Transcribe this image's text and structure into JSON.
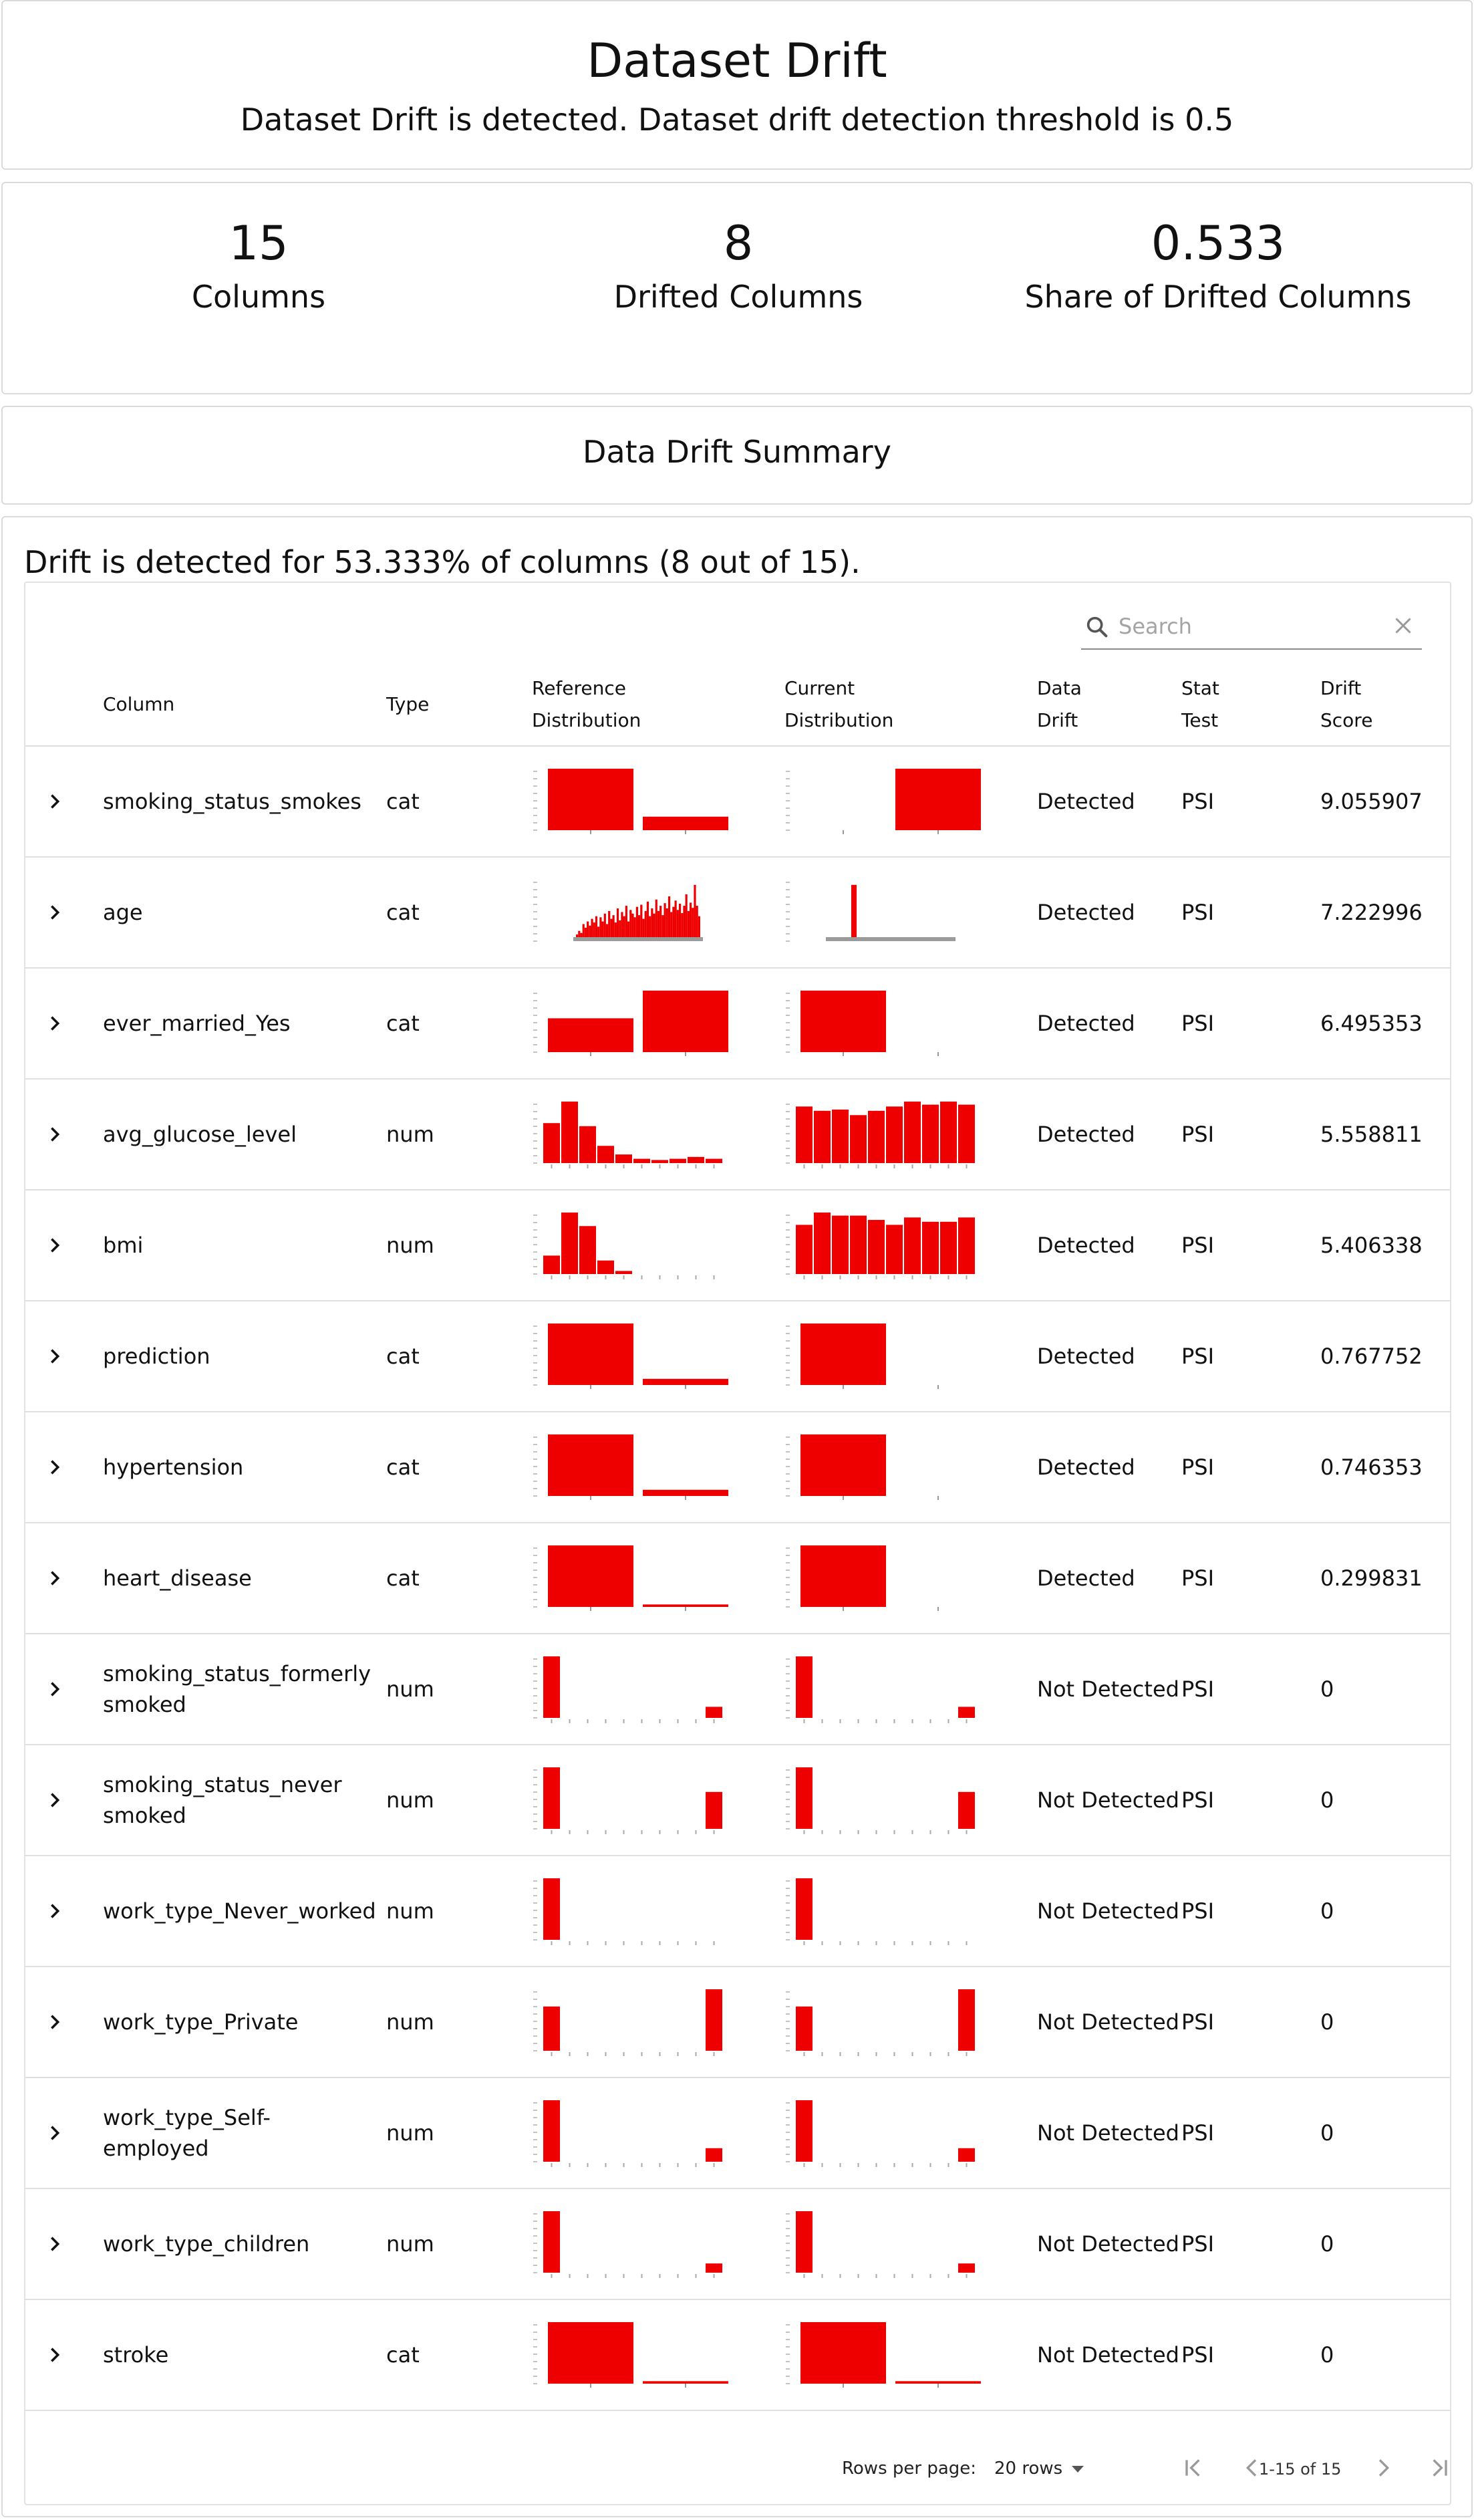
{
  "header": {
    "title": "Dataset Drift",
    "subtitle": "Dataset Drift is detected. Dataset drift detection threshold is 0.5"
  },
  "metrics": [
    {
      "value": "15",
      "label": "Columns"
    },
    {
      "value": "8",
      "label": "Drifted Columns"
    },
    {
      "value": "0.533",
      "label": "Share of Drifted Columns"
    }
  ],
  "summary_title": "Data Drift Summary",
  "drift_text": "Drift is detected for 53.333% of columns (8 out of 15).",
  "search": {
    "placeholder": "Search",
    "value": ""
  },
  "table": {
    "headers": {
      "column": "Column",
      "type": "Type",
      "reference_line1": "Reference",
      "reference_line2": "Distribution",
      "current_line1": "Current",
      "current_line2": "Distribution",
      "drift_line1": "Data",
      "drift_line2": "Drift",
      "stat_line1": "Stat",
      "stat_line2": "Test",
      "score_line1": "Drift",
      "score_line2": "Score"
    },
    "bar_color": "#ee0000",
    "rows": [
      {
        "name": "smoking_status_smokes",
        "type": "cat",
        "drift": "Detected",
        "stat": "PSI",
        "score": "9.055907",
        "ref": {
          "kind": "bars",
          "values": [
            1.0,
            0.22
          ],
          "axis": false
        },
        "cur": {
          "kind": "bars",
          "values": [
            0.0,
            1.0
          ],
          "axis": false
        }
      },
      {
        "name": "age",
        "type": "cat",
        "drift": "Detected",
        "stat": "PSI",
        "score": "7.222996",
        "ref": {
          "kind": "dense",
          "values": [
            0.05,
            0.12,
            0.08,
            0.25,
            0.18,
            0.3,
            0.22,
            0.35,
            0.28,
            0.4,
            0.2,
            0.38,
            0.3,
            0.45,
            0.25,
            0.5,
            0.35,
            0.42,
            0.28,
            0.55,
            0.32,
            0.48,
            0.4,
            0.6,
            0.3,
            0.52,
            0.45,
            0.38,
            0.58,
            0.42,
            0.62,
            0.35,
            0.5,
            0.68,
            0.4,
            0.55,
            0.45,
            0.72,
            0.5,
            0.6,
            0.42,
            0.65,
            0.55,
            0.78,
            0.48,
            0.58,
            0.7,
            0.52,
            0.64,
            0.46,
            0.6,
            0.82,
            0.5,
            0.66,
            0.56,
            1.0,
            0.6,
            0.4
          ],
          "axis": true
        },
        "cur": {
          "kind": "spike",
          "values": [
            1.0
          ],
          "axis": true
        }
      },
      {
        "name": "ever_married_Yes",
        "type": "cat",
        "drift": "Detected",
        "stat": "PSI",
        "score": "6.495353",
        "ref": {
          "kind": "bars",
          "values": [
            0.55,
            1.0
          ],
          "axis": false
        },
        "cur": {
          "kind": "bars",
          "values": [
            1.0,
            0.0
          ],
          "axis": false
        }
      },
      {
        "name": "avg_glucose_level",
        "type": "num",
        "drift": "Detected",
        "stat": "PSI",
        "score": "5.558811",
        "ref": {
          "kind": "hist",
          "values": [
            0.65,
            1.0,
            0.6,
            0.28,
            0.14,
            0.07,
            0.05,
            0.07,
            0.1,
            0.07
          ],
          "axis": true
        },
        "cur": {
          "kind": "hist",
          "values": [
            0.92,
            0.85,
            0.87,
            0.78,
            0.85,
            0.92,
            1.0,
            0.95,
            1.0,
            0.95
          ],
          "axis": true
        }
      },
      {
        "name": "bmi",
        "type": "num",
        "drift": "Detected",
        "stat": "PSI",
        "score": "5.406338",
        "ref": {
          "kind": "hist",
          "values": [
            0.3,
            1.0,
            0.78,
            0.22,
            0.05,
            0,
            0,
            0,
            0,
            0
          ],
          "axis": true
        },
        "cur": {
          "kind": "hist",
          "values": [
            0.8,
            1.0,
            0.95,
            0.95,
            0.88,
            0.8,
            0.92,
            0.85,
            0.85,
            0.92
          ],
          "axis": true
        }
      },
      {
        "name": "prediction",
        "type": "cat",
        "drift": "Detected",
        "stat": "PSI",
        "score": "0.767752",
        "ref": {
          "kind": "bars",
          "values": [
            1.0,
            0.1
          ],
          "axis": false
        },
        "cur": {
          "kind": "bars",
          "values": [
            1.0,
            0.0
          ],
          "axis": false
        }
      },
      {
        "name": "hypertension",
        "type": "cat",
        "drift": "Detected",
        "stat": "PSI",
        "score": "0.746353",
        "ref": {
          "kind": "bars",
          "values": [
            1.0,
            0.1
          ],
          "axis": false
        },
        "cur": {
          "kind": "bars",
          "values": [
            1.0,
            0.0
          ],
          "axis": false
        }
      },
      {
        "name": "heart_disease",
        "type": "cat",
        "drift": "Detected",
        "stat": "PSI",
        "score": "0.299831",
        "ref": {
          "kind": "bars",
          "values": [
            1.0,
            0.04
          ],
          "axis": false
        },
        "cur": {
          "kind": "bars",
          "values": [
            1.0,
            0.0
          ],
          "axis": false
        }
      },
      {
        "name": "smoking_status_formerly smoked",
        "type": "num",
        "drift": "Not Detected",
        "stat": "PSI",
        "score": "0",
        "ref": {
          "kind": "hist",
          "values": [
            1.0,
            0,
            0,
            0,
            0,
            0,
            0,
            0,
            0,
            0.18
          ],
          "axis": true
        },
        "cur": {
          "kind": "hist",
          "values": [
            1.0,
            0,
            0,
            0,
            0,
            0,
            0,
            0,
            0,
            0.18
          ],
          "axis": true
        }
      },
      {
        "name": "smoking_status_never smoked",
        "type": "num",
        "drift": "Not Detected",
        "stat": "PSI",
        "score": "0",
        "ref": {
          "kind": "hist",
          "values": [
            1.0,
            0,
            0,
            0,
            0,
            0,
            0,
            0,
            0,
            0.6
          ],
          "axis": true
        },
        "cur": {
          "kind": "hist",
          "values": [
            1.0,
            0,
            0,
            0,
            0,
            0,
            0,
            0,
            0,
            0.6
          ],
          "axis": true
        }
      },
      {
        "name": "work_type_Never_worked",
        "type": "num",
        "drift": "Not Detected",
        "stat": "PSI",
        "score": "0",
        "ref": {
          "kind": "hist",
          "values": [
            1.0,
            0,
            0,
            0,
            0,
            0,
            0,
            0,
            0,
            0
          ],
          "axis": true
        },
        "cur": {
          "kind": "hist",
          "values": [
            1.0,
            0,
            0,
            0,
            0,
            0,
            0,
            0,
            0,
            0
          ],
          "axis": true
        }
      },
      {
        "name": "work_type_Private",
        "type": "num",
        "drift": "Not Detected",
        "stat": "PSI",
        "score": "0",
        "ref": {
          "kind": "hist",
          "values": [
            0.72,
            0,
            0,
            0,
            0,
            0,
            0,
            0,
            0,
            1.0
          ],
          "axis": true
        },
        "cur": {
          "kind": "hist",
          "values": [
            0.72,
            0,
            0,
            0,
            0,
            0,
            0,
            0,
            0,
            1.0
          ],
          "axis": true
        }
      },
      {
        "name": "work_type_Self-employed",
        "type": "num",
        "drift": "Not Detected",
        "stat": "PSI",
        "score": "0",
        "ref": {
          "kind": "hist",
          "values": [
            1.0,
            0,
            0,
            0,
            0,
            0,
            0,
            0,
            0,
            0.22
          ],
          "axis": true
        },
        "cur": {
          "kind": "hist",
          "values": [
            1.0,
            0,
            0,
            0,
            0,
            0,
            0,
            0,
            0,
            0.22
          ],
          "axis": true
        }
      },
      {
        "name": "work_type_children",
        "type": "num",
        "drift": "Not Detected",
        "stat": "PSI",
        "score": "0",
        "ref": {
          "kind": "hist",
          "values": [
            1.0,
            0,
            0,
            0,
            0,
            0,
            0,
            0,
            0,
            0.15
          ],
          "axis": true
        },
        "cur": {
          "kind": "hist",
          "values": [
            1.0,
            0,
            0,
            0,
            0,
            0,
            0,
            0,
            0,
            0.15
          ],
          "axis": true
        }
      },
      {
        "name": "stroke",
        "type": "cat",
        "drift": "Not Detected",
        "stat": "PSI",
        "score": "0",
        "ref": {
          "kind": "bars",
          "values": [
            1.0,
            0.04
          ],
          "axis": false
        },
        "cur": {
          "kind": "bars",
          "values": [
            1.0,
            0.04
          ],
          "axis": false
        }
      }
    ]
  },
  "pagination": {
    "rows_per_page_label": "Rows per page:",
    "rows_per_page_value": "20 rows",
    "range": "1-15 of 15"
  }
}
